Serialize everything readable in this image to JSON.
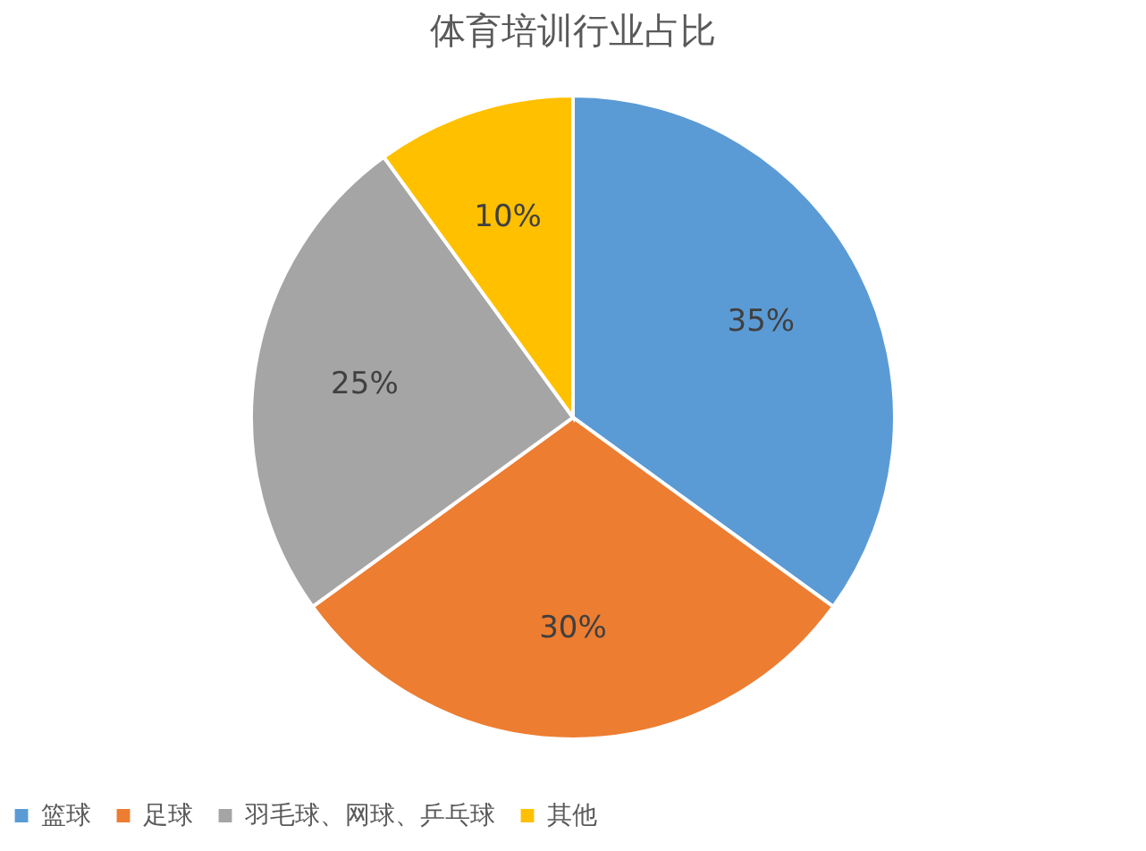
{
  "chart_data": {
    "type": "pie",
    "title": "体育培训行业占比",
    "categories": [
      "篮球",
      "足球",
      "羽毛球、网球、乒乓球",
      "其他"
    ],
    "values": [
      35,
      30,
      25,
      10
    ],
    "colors": [
      "#5b9bd5",
      "#ed7d31",
      "#a5a5a5",
      "#ffc000"
    ],
    "value_labels": [
      "35%",
      "30%",
      "25%",
      "10%"
    ],
    "legend": "bottom"
  }
}
